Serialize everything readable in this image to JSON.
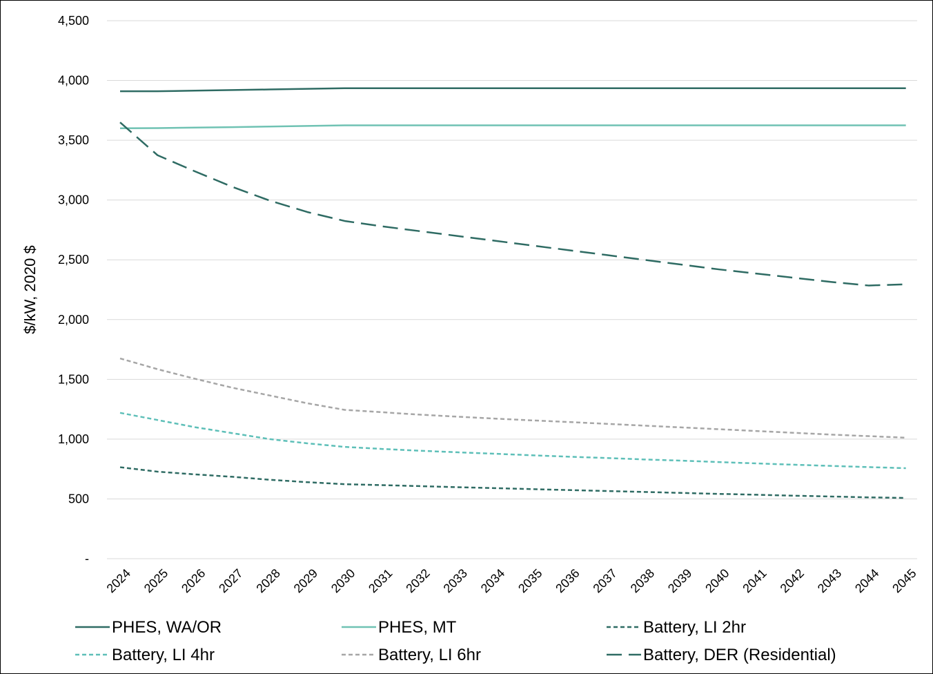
{
  "chart_data": {
    "type": "line",
    "ylabel": "$/kW, 2020 $",
    "ylim": [
      0,
      4500
    ],
    "yticks": [
      0,
      500,
      1000,
      1500,
      2000,
      2500,
      3000,
      3500,
      4000,
      4500
    ],
    "ytick_labels": [
      "-",
      "500",
      "1,000",
      "1,500",
      "2,000",
      "2,500",
      "3,000",
      "3,500",
      "4,000",
      "4,500"
    ],
    "x": [
      "2024",
      "2025",
      "2026",
      "2027",
      "2028",
      "2029",
      "2030",
      "2031",
      "2032",
      "2033",
      "2034",
      "2035",
      "2036",
      "2037",
      "2038",
      "2039",
      "2040",
      "2041",
      "2042",
      "2043",
      "2044",
      "2045"
    ],
    "grid": "horizontal",
    "legend_position": "bottom",
    "series": [
      {
        "name": "PHES, WA/OR",
        "color": "#2e6b63",
        "dash": "solid",
        "values": [
          3910,
          3910,
          3915,
          3920,
          3925,
          3930,
          3935,
          3935,
          3935,
          3935,
          3935,
          3935,
          3935,
          3935,
          3935,
          3935,
          3935,
          3935,
          3935,
          3935,
          3935,
          3935
        ]
      },
      {
        "name": "PHES, MT",
        "color": "#6fc2b3",
        "dash": "solid",
        "values": [
          3600,
          3602,
          3606,
          3610,
          3615,
          3620,
          3625,
          3625,
          3625,
          3625,
          3625,
          3625,
          3625,
          3625,
          3625,
          3625,
          3625,
          3625,
          3625,
          3625,
          3625,
          3625
        ]
      },
      {
        "name": "Battery, LI 2hr",
        "color": "#2e6b63",
        "dash": "short",
        "values": [
          765,
          728,
          705,
          685,
          660,
          640,
          623,
          615,
          607,
          598,
          590,
          582,
          574,
          566,
          558,
          550,
          542,
          535,
          527,
          520,
          513,
          508
        ]
      },
      {
        "name": "Battery, LI 4hr",
        "color": "#5dbfb8",
        "dash": "short",
        "values": [
          1220,
          1160,
          1100,
          1050,
          1000,
          965,
          935,
          918,
          903,
          890,
          878,
          865,
          853,
          842,
          830,
          820,
          808,
          797,
          786,
          776,
          766,
          757
        ]
      },
      {
        "name": "Battery, LI 6hr",
        "color": "#a6a6a6",
        "dash": "short",
        "values": [
          1675,
          1585,
          1505,
          1430,
          1365,
          1300,
          1245,
          1225,
          1205,
          1188,
          1172,
          1157,
          1143,
          1128,
          1113,
          1098,
          1083,
          1068,
          1053,
          1038,
          1025,
          1012
        ]
      },
      {
        "name": "Battery, DER (Residential)",
        "color": "#2e6b63",
        "dash": "long",
        "values": [
          3650,
          3375,
          3240,
          3110,
          2995,
          2900,
          2825,
          2780,
          2740,
          2700,
          2660,
          2620,
          2580,
          2540,
          2500,
          2460,
          2420,
          2385,
          2350,
          2315,
          2285,
          2295
        ]
      }
    ]
  }
}
